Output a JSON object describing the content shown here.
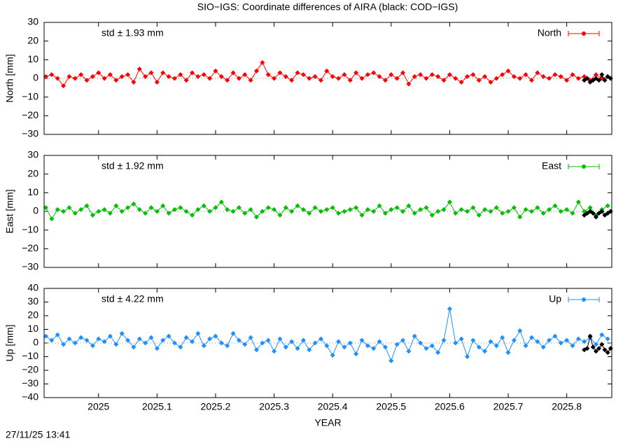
{
  "title": "SIO−IGS: Coordinate differences of AIRA (black: COD−IGS)",
  "timestamp": "27/11/25 13:41",
  "chart_data": [
    {
      "type": "line",
      "ylabel": "North [mm]",
      "annotation": "std ± 1.93 mm",
      "xlim": [
        2024.907,
        2025.877
      ],
      "ylim": [
        -30,
        30
      ],
      "yticks": [
        {
          "value": -30,
          "label": "−30"
        },
        {
          "value": -20,
          "label": "−20"
        },
        {
          "value": -10,
          "label": "−10"
        },
        0,
        10,
        20,
        30
      ],
      "zeroaxis": true,
      "legend": "upper right",
      "x": [
        2024.91,
        2024.92,
        2024.93,
        2024.94,
        2024.95,
        2024.96,
        2024.97,
        2024.98,
        2024.99,
        2025,
        2025.01,
        2025.02,
        2025.03,
        2025.04,
        2025.05,
        2025.06,
        2025.07,
        2025.08,
        2025.09,
        2025.1,
        2025.11,
        2025.12,
        2025.13,
        2025.14,
        2025.15,
        2025.16,
        2025.17,
        2025.18,
        2025.19,
        2025.2,
        2025.21,
        2025.22,
        2025.23,
        2025.24,
        2025.25,
        2025.26,
        2025.27,
        2025.28,
        2025.29,
        2025.3,
        2025.31,
        2025.32,
        2025.33,
        2025.34,
        2025.35,
        2025.36,
        2025.37,
        2025.38,
        2025.39,
        2025.4,
        2025.41,
        2025.42,
        2025.43,
        2025.44,
        2025.45,
        2025.46,
        2025.47,
        2025.48,
        2025.49,
        2025.5,
        2025.51,
        2025.52,
        2025.53,
        2025.54,
        2025.55,
        2025.56,
        2025.57,
        2025.58,
        2025.59,
        2025.6,
        2025.61,
        2025.62,
        2025.63,
        2025.64,
        2025.65,
        2025.66,
        2025.67,
        2025.68,
        2025.69,
        2025.7,
        2025.71,
        2025.72,
        2025.73,
        2025.74,
        2025.75,
        2025.76,
        2025.77,
        2025.78,
        2025.79,
        2025.8,
        2025.81,
        2025.82,
        2025.83,
        2025.84,
        2025.85,
        2025.86,
        2025.87
      ],
      "series": [
        {
          "name": "North",
          "color": "#ff0000",
          "values": [
            1,
            2,
            0,
            -4,
            1,
            0,
            2,
            -1,
            1,
            3,
            0,
            2,
            -1,
            1,
            2,
            -2,
            5,
            1,
            3,
            -2,
            3,
            1,
            0,
            2,
            -1,
            3,
            1,
            2,
            0,
            4,
            1,
            -1,
            3,
            0,
            2,
            -1,
            4,
            8.5,
            2,
            0,
            3,
            1,
            -1,
            3,
            2,
            0,
            1,
            -1,
            4,
            1,
            0,
            2,
            -1,
            3,
            0,
            2,
            3,
            1,
            -1,
            2,
            0,
            3,
            -3,
            1,
            2,
            0,
            2,
            1,
            -1,
            2,
            0,
            -2,
            1,
            2,
            -1,
            1,
            -2,
            0,
            2,
            4,
            1,
            0,
            2,
            -1,
            3,
            1,
            0,
            2,
            1,
            -1,
            2,
            0,
            1,
            -1,
            2,
            0,
            1
          ]
        },
        {
          "color": "#000000",
          "x": [
            2025.83,
            2025.835,
            2025.84,
            2025.845,
            2025.85,
            2025.855,
            2025.86,
            2025.865,
            2025.87,
            2025.875
          ],
          "values": [
            -1,
            0,
            -2,
            -1,
            0,
            -1,
            2,
            -1,
            1,
            0
          ]
        }
      ]
    },
    {
      "type": "line",
      "ylabel": "East [mm]",
      "annotation": "std ± 1.92 mm",
      "xlim": [
        2024.907,
        2025.877
      ],
      "ylim": [
        -30,
        30
      ],
      "yticks": [
        {
          "value": -30,
          "label": "−30"
        },
        {
          "value": -20,
          "label": "−20"
        },
        {
          "value": -10,
          "label": "−10"
        },
        0,
        10,
        20,
        30
      ],
      "zeroaxis": true,
      "legend": "upper right",
      "x": [
        2024.91,
        2024.92,
        2024.93,
        2024.94,
        2024.95,
        2024.96,
        2024.97,
        2024.98,
        2024.99,
        2025,
        2025.01,
        2025.02,
        2025.03,
        2025.04,
        2025.05,
        2025.06,
        2025.07,
        2025.08,
        2025.09,
        2025.1,
        2025.11,
        2025.12,
        2025.13,
        2025.14,
        2025.15,
        2025.16,
        2025.17,
        2025.18,
        2025.19,
        2025.2,
        2025.21,
        2025.22,
        2025.23,
        2025.24,
        2025.25,
        2025.26,
        2025.27,
        2025.28,
        2025.29,
        2025.3,
        2025.31,
        2025.32,
        2025.33,
        2025.34,
        2025.35,
        2025.36,
        2025.37,
        2025.38,
        2025.39,
        2025.4,
        2025.41,
        2025.42,
        2025.43,
        2025.44,
        2025.45,
        2025.46,
        2025.47,
        2025.48,
        2025.49,
        2025.5,
        2025.51,
        2025.52,
        2025.53,
        2025.54,
        2025.55,
        2025.56,
        2025.57,
        2025.58,
        2025.59,
        2025.6,
        2025.61,
        2025.62,
        2025.63,
        2025.64,
        2025.65,
        2025.66,
        2025.67,
        2025.68,
        2025.69,
        2025.7,
        2025.71,
        2025.72,
        2025.73,
        2025.74,
        2025.75,
        2025.76,
        2025.77,
        2025.78,
        2025.79,
        2025.8,
        2025.81,
        2025.82,
        2025.83,
        2025.84,
        2025.85,
        2025.86,
        2025.87
      ],
      "series": [
        {
          "name": "East",
          "color": "#00c000",
          "values": [
            2,
            -4,
            1,
            0,
            2,
            -1,
            1,
            3,
            -2,
            0,
            1,
            -1,
            3,
            0,
            2,
            4,
            1,
            -1,
            2,
            0,
            3,
            -1,
            1,
            2,
            0,
            -2,
            1,
            3,
            0,
            2,
            5,
            1,
            0,
            2,
            -1,
            1,
            -3,
            0,
            2,
            1,
            -2,
            2,
            0,
            3,
            1,
            -1,
            2,
            0,
            1,
            2,
            -1,
            0,
            1,
            2,
            -2,
            1,
            0,
            3,
            -1,
            1,
            2,
            0,
            3,
            -1,
            1,
            2,
            -2,
            0,
            1,
            5,
            -1,
            1,
            0,
            2,
            -2,
            1,
            0,
            2,
            -1,
            0,
            2,
            -3,
            1,
            0,
            2,
            -1,
            1,
            3,
            0,
            1,
            -1,
            5,
            0,
            2,
            -2,
            1,
            3
          ]
        },
        {
          "color": "#000000",
          "x": [
            2025.83,
            2025.835,
            2025.84,
            2025.845,
            2025.85,
            2025.855,
            2025.86,
            2025.865,
            2025.87,
            2025.875
          ],
          "values": [
            -2,
            -1,
            0,
            -1,
            -3,
            -1,
            0,
            -2,
            -1,
            0
          ]
        }
      ]
    },
    {
      "type": "line",
      "ylabel": "Up [mm]",
      "annotation": "std ± 4.22 mm",
      "xlabel": "YEAR",
      "xlim": [
        2024.907,
        2025.877
      ],
      "ylim": [
        -40,
        40
      ],
      "xticks": [
        2025,
        2025.1,
        2025.2,
        2025.3,
        2025.4,
        2025.5,
        2025.6,
        2025.7,
        2025.8
      ],
      "yticks": [
        {
          "value": -40,
          "label": "−40"
        },
        {
          "value": -30,
          "label": "−30"
        },
        {
          "value": -20,
          "label": "−20"
        },
        {
          "value": -10,
          "label": "−10"
        },
        0,
        10,
        20,
        30,
        40
      ],
      "zeroaxis": true,
      "legend": "upper right",
      "x": [
        2024.91,
        2024.92,
        2024.93,
        2024.94,
        2024.95,
        2024.96,
        2024.97,
        2024.98,
        2024.99,
        2025,
        2025.01,
        2025.02,
        2025.03,
        2025.04,
        2025.05,
        2025.06,
        2025.07,
        2025.08,
        2025.09,
        2025.1,
        2025.11,
        2025.12,
        2025.13,
        2025.14,
        2025.15,
        2025.16,
        2025.17,
        2025.18,
        2025.19,
        2025.2,
        2025.21,
        2025.22,
        2025.23,
        2025.24,
        2025.25,
        2025.26,
        2025.27,
        2025.28,
        2025.29,
        2025.3,
        2025.31,
        2025.32,
        2025.33,
        2025.34,
        2025.35,
        2025.36,
        2025.37,
        2025.38,
        2025.39,
        2025.4,
        2025.41,
        2025.42,
        2025.43,
        2025.44,
        2025.45,
        2025.46,
        2025.47,
        2025.48,
        2025.49,
        2025.5,
        2025.51,
        2025.52,
        2025.53,
        2025.54,
        2025.55,
        2025.56,
        2025.57,
        2025.58,
        2025.59,
        2025.6,
        2025.61,
        2025.62,
        2025.63,
        2025.64,
        2025.65,
        2025.66,
        2025.67,
        2025.68,
        2025.69,
        2025.7,
        2025.71,
        2025.72,
        2025.73,
        2025.74,
        2025.75,
        2025.76,
        2025.77,
        2025.78,
        2025.79,
        2025.8,
        2025.81,
        2025.82,
        2025.83,
        2025.84,
        2025.85,
        2025.86,
        2025.87
      ],
      "series": [
        {
          "name": "Up",
          "color": "#1e90ff",
          "values": [
            5,
            2,
            6,
            -1,
            3,
            0,
            4,
            2,
            -2,
            3,
            1,
            5,
            -1,
            7,
            2,
            -3,
            3,
            0,
            4,
            -4,
            2,
            5,
            0,
            -3,
            4,
            1,
            7,
            -2,
            3,
            5,
            0,
            -2,
            7,
            2,
            -1,
            4,
            -5,
            0,
            2,
            -6,
            3,
            -3,
            1,
            -4,
            2,
            -5,
            0,
            3,
            -2,
            -9,
            1,
            -3,
            0,
            -8,
            2,
            -2,
            -4,
            1,
            -3,
            -13,
            -1,
            2,
            -6,
            5,
            0,
            -4,
            -2,
            -7,
            2,
            25,
            0,
            3,
            -10,
            2,
            -3,
            -6,
            1,
            -2,
            4,
            -7,
            2,
            9,
            -2,
            4,
            1,
            -3,
            2,
            5,
            0,
            2,
            -2,
            3,
            1,
            4,
            -1,
            6,
            3
          ]
        },
        {
          "color": "#000000",
          "x": [
            2025.83,
            2025.835,
            2025.84,
            2025.845,
            2025.85,
            2025.855,
            2025.86,
            2025.865,
            2025.87,
            2025.875
          ],
          "values": [
            -5,
            -4,
            5,
            -3,
            -6,
            -4,
            -1,
            -5,
            -7,
            -4
          ]
        }
      ]
    }
  ]
}
